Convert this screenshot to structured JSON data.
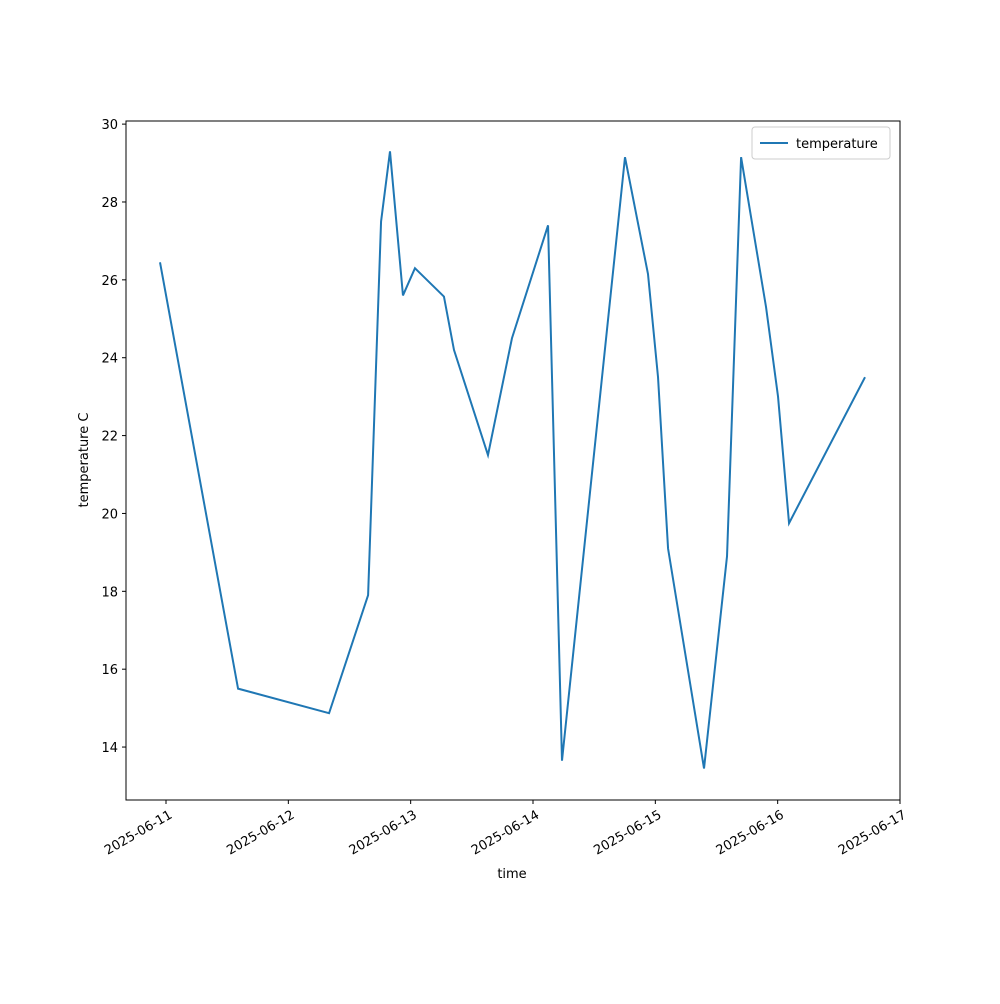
{
  "chart_data": {
    "type": "line",
    "xlabel": "time",
    "ylabel": "temperature C",
    "x": [
      10.951,
      11.589,
      12.333,
      12.652,
      12.758,
      12.831,
      12.937,
      13.035,
      13.272,
      13.354,
      13.632,
      13.828,
      14.123,
      14.237,
      14.752,
      14.94,
      15.022,
      15.104,
      15.398,
      15.586,
      15.66,
      15.701,
      15.905,
      16.003,
      16.093,
      16.714
    ],
    "series": [
      {
        "name": "temperature",
        "color": "#1f77b4",
        "values": [
          26.45,
          15.5,
          14.87,
          17.9,
          27.5,
          29.3,
          25.6,
          26.3,
          25.57,
          24.2,
          21.5,
          24.5,
          27.4,
          13.65,
          29.15,
          26.15,
          23.5,
          19.1,
          13.45,
          18.9,
          25.5,
          29.15,
          25.3,
          23.0,
          19.75,
          23.5
        ]
      }
    ],
    "xlim": [
      10.673,
      17.0
    ],
    "xticks": [
      {
        "value": 11,
        "label": "2025-06-11"
      },
      {
        "value": 12,
        "label": "2025-06-12"
      },
      {
        "value": 13,
        "label": "2025-06-13"
      },
      {
        "value": 14,
        "label": "2025-06-14"
      },
      {
        "value": 15,
        "label": "2025-06-15"
      },
      {
        "value": 16,
        "label": "2025-06-16"
      },
      {
        "value": 17,
        "label": "2025-06-17"
      }
    ],
    "ylim": [
      12.64,
      30.08
    ],
    "yticks": [
      14,
      16,
      18,
      20,
      22,
      24,
      26,
      28,
      30
    ],
    "legend": "upper right"
  }
}
